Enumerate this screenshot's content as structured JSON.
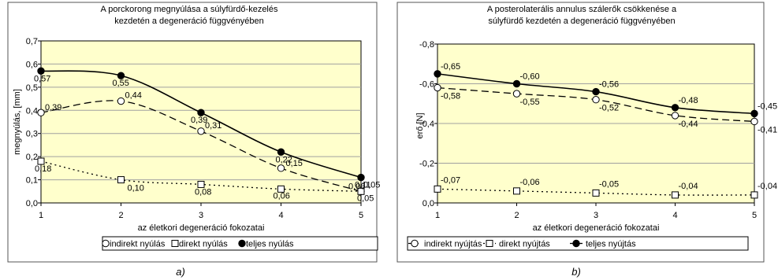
{
  "chart_data": [
    {
      "type": "line",
      "title_lines": [
        "A porckorong megnyúlása a súlyfürdő-kezelés",
        "kezdetén a degeneráció függvényében"
      ],
      "xlabel": "az életkori degeneráció fokozatai",
      "ylabel": "megnyúlás, [mm]",
      "x": [
        1,
        2,
        3,
        4,
        5
      ],
      "xticks": [
        "1",
        "2",
        "3",
        "4",
        "5"
      ],
      "ylim": [
        0,
        0.7
      ],
      "yticks": [
        "0,0",
        "0,1",
        "0,2",
        "0,3",
        "0,4",
        "0,5",
        "0,6",
        "0,7"
      ],
      "grid": true,
      "plot_bg": "#ffffcc",
      "legend_position": "bottom",
      "caption": "a)",
      "series": [
        {
          "name": "indirekt nyúlás",
          "marker": "open-circle",
          "style": "dashed",
          "values": [
            0.39,
            0.44,
            0.31,
            0.15,
            0.05
          ],
          "labels": [
            "0,39",
            "0,44",
            "0,31",
            "0,15",
            "0,05"
          ]
        },
        {
          "name": "direkt nyúlás",
          "marker": "open-square",
          "style": "dotted",
          "values": [
            0.18,
            0.1,
            0.08,
            0.06,
            0.05
          ],
          "labels": [
            "0,18",
            "0,10",
            "0,08",
            "0,06",
            "0,05"
          ]
        },
        {
          "name": "teljes nyúlás",
          "marker": "filled-circle",
          "style": "solid",
          "values": [
            0.57,
            0.55,
            0.39,
            0.22,
            0.11
          ],
          "labels": [
            "0,57",
            "0,55",
            "0,39",
            "0,22",
            "0,11"
          ]
        }
      ],
      "extra_labels": [
        "0,06"
      ]
    },
    {
      "type": "line",
      "title_lines": [
        "A posterolaterális annulus szálerők csökkenése a",
        "súlyfürdő kezdetén a degeneráció függvényében"
      ],
      "xlabel": "az életkori degeneráció fokozatai",
      "ylabel": "erő [N]",
      "x": [
        1,
        2,
        3,
        4,
        5
      ],
      "xticks": [
        "1",
        "2",
        "3",
        "4",
        "5"
      ],
      "ylim": [
        0,
        -0.8
      ],
      "yticks": [
        "0,0",
        "-0,2",
        "-0,4",
        "-0,6",
        "-0,8"
      ],
      "grid": true,
      "plot_bg": "#ffffcc",
      "legend_position": "bottom",
      "caption": "b)",
      "series": [
        {
          "name": "indirekt nyújtás",
          "marker": "open-circle",
          "style": "dashed",
          "values": [
            -0.58,
            -0.55,
            -0.52,
            -0.44,
            -0.41
          ],
          "labels": [
            "-0,58",
            "-0,55",
            "-0,52",
            "-0,44",
            "-0,41"
          ]
        },
        {
          "name": "direkt nyújtás",
          "marker": "open-square",
          "style": "dotted",
          "values": [
            -0.07,
            -0.06,
            -0.05,
            -0.04,
            -0.04
          ],
          "labels": [
            "-0,07",
            "-0,06",
            "-0,05",
            "-0,04",
            "-0,04"
          ]
        },
        {
          "name": "teljes nyújtás",
          "marker": "filled-circle",
          "style": "solid",
          "values": [
            -0.65,
            -0.6,
            -0.56,
            -0.48,
            -0.45
          ],
          "labels": [
            "-0,65",
            "-0,60",
            "-0,56",
            "-0,48",
            "-0,45"
          ]
        }
      ]
    }
  ]
}
